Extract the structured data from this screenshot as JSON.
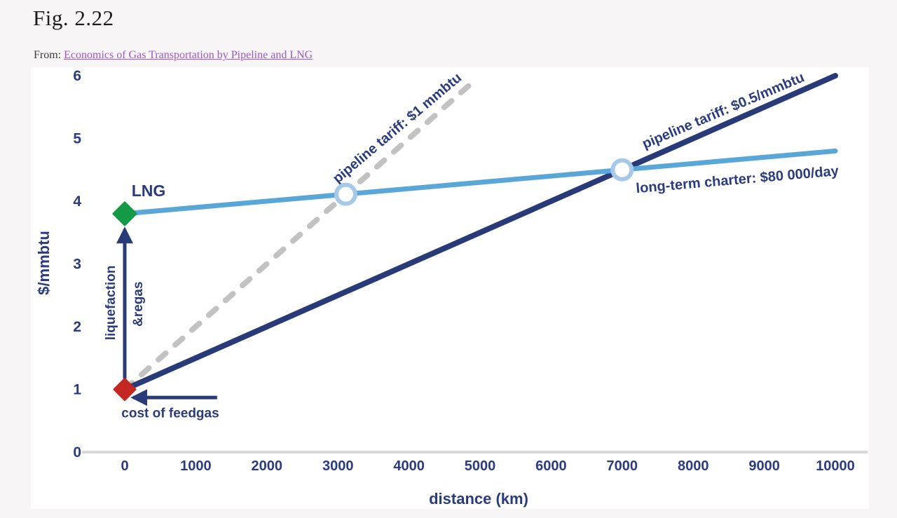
{
  "page": {
    "title": "Fig. 2.22",
    "source_prefix": "From: ",
    "source_link": "Economics of Gas Transportation by Pipeline and LNG"
  },
  "colors": {
    "page_bg": "#F7F5F6",
    "title": "#1D1D1D",
    "link": "#9D57C9",
    "navy": "#283A78",
    "navy_text": "#2B3C7E",
    "light_blue": "#58A7D8",
    "dash_gray": "#C2C2C2",
    "green": "#149A44",
    "red": "#C42722",
    "axis_line": "#D9D9D9",
    "circle_ring": "#A6C9E8",
    "chart_bg": "#FFFFFF"
  },
  "chart_data": {
    "type": "line",
    "title": "",
    "xlabel": "distance (km)",
    "ylabel": "$/mmbtu",
    "xlim": [
      0,
      10000
    ],
    "ylim": [
      0,
      6
    ],
    "x_ticks": [
      0,
      1000,
      2000,
      3000,
      4000,
      5000,
      6000,
      7000,
      8000,
      9000,
      10000
    ],
    "y_ticks": [
      0,
      1,
      2,
      3,
      4,
      5,
      6
    ],
    "grid": false,
    "legend": "labels-on-lines",
    "series": [
      {
        "id": "pipeline-tariff-1mmbtu",
        "name": "pipeline tariff: $1 mmbtu",
        "style": "dashed",
        "color": "#C2C2C2",
        "width": 8,
        "points": [
          [
            0,
            1
          ],
          [
            4900,
            5.9
          ]
        ],
        "slope_usd_per_1000km": 1.0,
        "label": {
          "x": 3830,
          "y": 5.17,
          "angle": -40,
          "size": 20
        }
      },
      {
        "id": "pipeline-tariff-05mmbtu",
        "name": "pipeline tariff: $0.5/mmbtu",
        "style": "solid",
        "color": "#283A78",
        "width": 8,
        "points": [
          [
            0,
            1
          ],
          [
            10000,
            6
          ]
        ],
        "slope_usd_per_1000km": 0.5,
        "label": {
          "x": 8420,
          "y": 5.45,
          "angle": -23,
          "size": 20
        }
      },
      {
        "id": "lng-charter",
        "name": "long-term charter: $80 000/day",
        "style": "solid",
        "color": "#58A7D8",
        "width": 7,
        "points": [
          [
            0,
            3.8
          ],
          [
            10000,
            4.8
          ]
        ],
        "slope_usd_per_1000km": 0.1,
        "label": {
          "x": 8620,
          "y": 4.35,
          "angle": -5,
          "size": 20
        }
      }
    ],
    "markers": [
      {
        "id": "lng-start-diamond",
        "shape": "diamond",
        "x": 0,
        "y": 3.8,
        "color": "#149A44",
        "size": 16
      },
      {
        "id": "feedgas-diamond",
        "shape": "diamond",
        "x": 0,
        "y": 1,
        "color": "#C42722",
        "size": 15
      },
      {
        "id": "breakeven-lng-vs-1mmbtu",
        "shape": "circle",
        "x": 3111,
        "y": 4.11,
        "ring": "#A6C9E8",
        "r": 13.5
      },
      {
        "id": "breakeven-lng-vs-05mmbtu",
        "shape": "circle",
        "x": 7000,
        "y": 4.5,
        "ring": "#A6C9E8",
        "r": 13.5
      }
    ],
    "annotations": [
      {
        "id": "lng-label",
        "text": "LNG",
        "x": 335,
        "y": 4.17,
        "angle": 0,
        "size": 23
      },
      {
        "id": "liquefaction-label",
        "text": "liquefaction",
        "x": -207,
        "y": 2.38,
        "angle": -90,
        "size": 19
      },
      {
        "id": "regas-label",
        "text": "&regas",
        "x": 177,
        "y": 2.36,
        "angle": -90,
        "size": 19
      },
      {
        "id": "feedgas-label",
        "text": "cost of feedgas",
        "x": 641,
        "y": 0.63,
        "angle": 0,
        "size": 19
      }
    ],
    "arrows": [
      {
        "id": "liquefaction-arrow",
        "from": [
          0,
          1.17
        ],
        "to": [
          0,
          3.55
        ]
      },
      {
        "id": "feedgas-arrow",
        "from": [
          1300,
          0.87
        ],
        "to": [
          120,
          0.87
        ]
      }
    ]
  }
}
